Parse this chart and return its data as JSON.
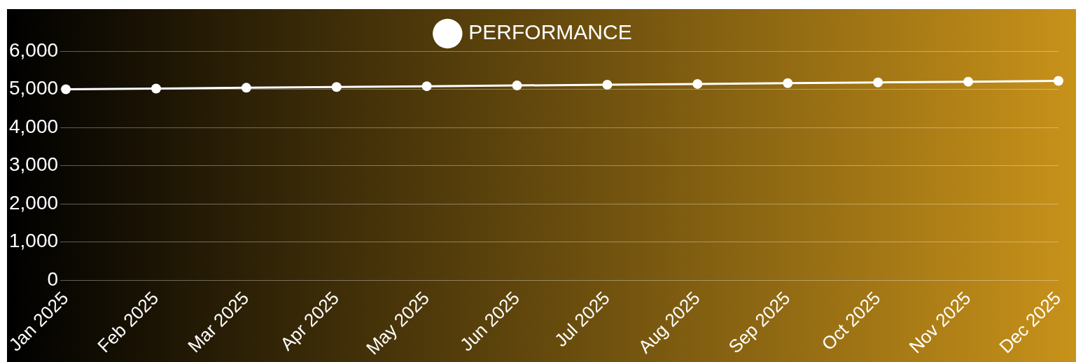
{
  "chart_data": {
    "type": "line",
    "categories": [
      "Jan 2025",
      "Feb 2025",
      "Mar 2025",
      "Apr 2025",
      "May 2025",
      "Jun 2025",
      "Jul 2025",
      "Aug 2025",
      "Sep 2025",
      "Oct 2025",
      "Nov 2025",
      "Dec 2025"
    ],
    "series": [
      {
        "name": "PERFORMANCE",
        "color": "#ffffff",
        "values": [
          5000,
          5020,
          5040,
          5060,
          5080,
          5100,
          5120,
          5140,
          5160,
          5180,
          5200,
          5220
        ]
      }
    ],
    "ylim": [
      0,
      6000
    ],
    "yticks": [
      {
        "value": 0,
        "label": "0"
      },
      {
        "value": 1000,
        "label": "1,000"
      },
      {
        "value": 2000,
        "label": "2,000"
      },
      {
        "value": 3000,
        "label": "3,000"
      },
      {
        "value": 4000,
        "label": "4,000"
      },
      {
        "value": 5000,
        "label": "5,000"
      },
      {
        "value": 6000,
        "label": "6,000"
      }
    ],
    "grid": "y",
    "legend": "top",
    "marker": "circle",
    "line_style": "solid"
  }
}
